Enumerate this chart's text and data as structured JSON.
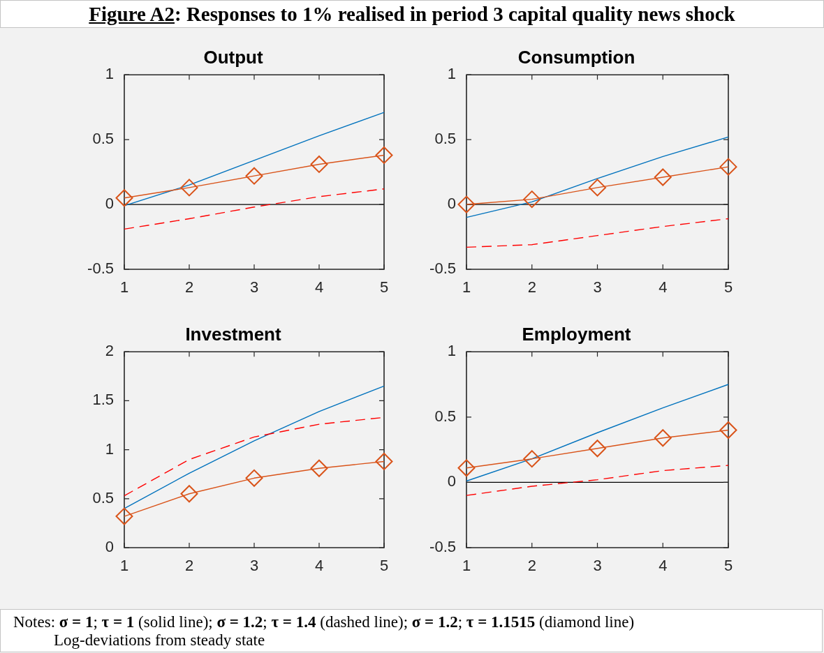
{
  "chart_data": [
    {
      "type": "other",
      "title": "Figure A2: Responses to 1% realised in period 3 capital quality news shock"
    },
    {
      "type": "line",
      "title": "Output",
      "x": [
        1,
        2,
        3,
        4,
        5
      ],
      "xlim": [
        1,
        5
      ],
      "xticks": [
        1,
        2,
        3,
        4,
        5
      ],
      "ylim": [
        -0.5,
        1
      ],
      "yticks": [
        -0.5,
        0,
        0.5,
        1
      ],
      "ref_lines": [
        {
          "axis": "y",
          "value": 0,
          "color": "#000000"
        }
      ],
      "series": [
        {
          "color": "#0072bd",
          "line_style": "solid",
          "values": [
            -0.01,
            0.15,
            0.34,
            0.53,
            0.71
          ]
        },
        {
          "color": "#ff0000",
          "line_style": "dashed",
          "values": [
            -0.19,
            -0.11,
            -0.02,
            0.06,
            0.12
          ]
        },
        {
          "color": "#d95319",
          "line_style": "solid",
          "marker": "diamond",
          "values": [
            0.05,
            0.13,
            0.22,
            0.31,
            0.38
          ]
        }
      ]
    },
    {
      "type": "line",
      "title": "Consumption",
      "x": [
        1,
        2,
        3,
        4,
        5
      ],
      "xlim": [
        1,
        5
      ],
      "xticks": [
        1,
        2,
        3,
        4,
        5
      ],
      "ylim": [
        -0.5,
        1
      ],
      "yticks": [
        -0.5,
        0,
        0.5,
        1
      ],
      "ref_lines": [
        {
          "axis": "y",
          "value": 0,
          "color": "#000000"
        }
      ],
      "series": [
        {
          "color": "#0072bd",
          "line_style": "solid",
          "values": [
            -0.1,
            0.02,
            0.2,
            0.37,
            0.52
          ]
        },
        {
          "color": "#ff0000",
          "line_style": "dashed",
          "values": [
            -0.33,
            -0.31,
            -0.24,
            -0.17,
            -0.11
          ]
        },
        {
          "color": "#d95319",
          "line_style": "solid",
          "marker": "diamond",
          "values": [
            0,
            0.04,
            0.13,
            0.21,
            0.29
          ]
        }
      ]
    },
    {
      "type": "line",
      "title": "Investment",
      "x": [
        1,
        2,
        3,
        4,
        5
      ],
      "xlim": [
        1,
        5
      ],
      "xticks": [
        1,
        2,
        3,
        4,
        5
      ],
      "ylim": [
        0,
        2
      ],
      "yticks": [
        0,
        0.5,
        1,
        1.5,
        2
      ],
      "series": [
        {
          "color": "#0072bd",
          "line_style": "solid",
          "values": [
            0.4,
            0.76,
            1.09,
            1.39,
            1.65
          ]
        },
        {
          "color": "#ff0000",
          "line_style": "dashed",
          "values": [
            0.53,
            0.9,
            1.13,
            1.26,
            1.33
          ]
        },
        {
          "color": "#d95319",
          "line_style": "solid",
          "marker": "diamond",
          "values": [
            0.32,
            0.55,
            0.71,
            0.81,
            0.88
          ]
        }
      ]
    },
    {
      "type": "line",
      "title": "Employment",
      "x": [
        1,
        2,
        3,
        4,
        5
      ],
      "xlim": [
        1,
        5
      ],
      "xticks": [
        1,
        2,
        3,
        4,
        5
      ],
      "ylim": [
        -0.5,
        1
      ],
      "yticks": [
        -0.5,
        0,
        0.5,
        1
      ],
      "ref_lines": [
        {
          "axis": "y",
          "value": 0,
          "color": "#000000"
        }
      ],
      "series": [
        {
          "color": "#0072bd",
          "line_style": "solid",
          "values": [
            0.01,
            0.18,
            0.38,
            0.57,
            0.75
          ]
        },
        {
          "color": "#ff0000",
          "line_style": "dashed",
          "values": [
            -0.1,
            -0.03,
            0.02,
            0.09,
            0.13
          ]
        },
        {
          "color": "#d95319",
          "line_style": "solid",
          "marker": "diamond",
          "values": [
            0.11,
            0.18,
            0.26,
            0.34,
            0.4
          ]
        }
      ]
    },
    {
      "type": "other",
      "annotations": [
        "Notes: σ = 1; τ = 1 (solid line); σ = 1.2; τ = 1.4 (dashed line); σ = 1.2; τ = 1.1515 (diamond line)",
        "Log-deviations from steady state"
      ]
    }
  ]
}
